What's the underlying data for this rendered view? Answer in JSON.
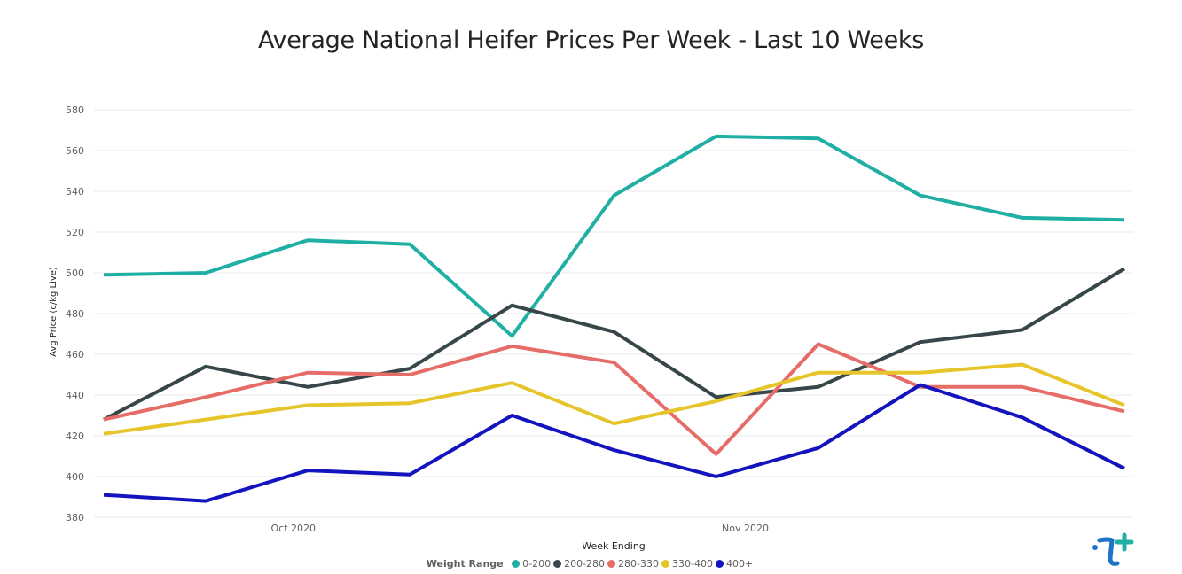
{
  "chart_data": {
    "type": "line",
    "title": "Average National Heifer Prices Per Week - Last 10 Weeks",
    "xlabel": "Week Ending",
    "ylabel": "Avg Price (c/kg Live)",
    "ylim": [
      380,
      585
    ],
    "yticks": [
      380,
      400,
      420,
      440,
      460,
      480,
      500,
      520,
      540,
      560,
      580
    ],
    "x": [
      "2020-09-18",
      "2020-09-25",
      "2020-10-02",
      "2020-10-09",
      "2020-10-16",
      "2020-10-23",
      "2020-10-30",
      "2020-11-06",
      "2020-11-13",
      "2020-11-20",
      "2020-11-27"
    ],
    "xticks": [
      {
        "label": "Oct 2020",
        "date": "2020-10-01"
      },
      {
        "label": "Nov 2020",
        "date": "2020-11-01"
      }
    ],
    "grid": true,
    "legend_title": "Weight Range",
    "legend_position": "bottom",
    "series": [
      {
        "name": "0-200",
        "color": "#20AFA5",
        "values": [
          499,
          500,
          516,
          514,
          469,
          538,
          567,
          566,
          538,
          527,
          526
        ]
      },
      {
        "name": "200-280",
        "color": "#374649",
        "values": [
          428,
          454,
          444,
          453,
          484,
          471,
          439,
          444,
          466,
          472,
          502
        ]
      },
      {
        "name": "280-330",
        "color": "#E66C67",
        "values": [
          428,
          439,
          451,
          450,
          464,
          456,
          411,
          465,
          444,
          444,
          432
        ]
      },
      {
        "name": "330-400",
        "color": "#E6C52B",
        "values": [
          421,
          428,
          435,
          436,
          446,
          426,
          437,
          451,
          451,
          455,
          435
        ]
      },
      {
        "name": "400+",
        "color": "#1414BE",
        "values": [
          391,
          388,
          403,
          401,
          430,
          413,
          400,
          414,
          445,
          429,
          404
        ]
      }
    ]
  }
}
